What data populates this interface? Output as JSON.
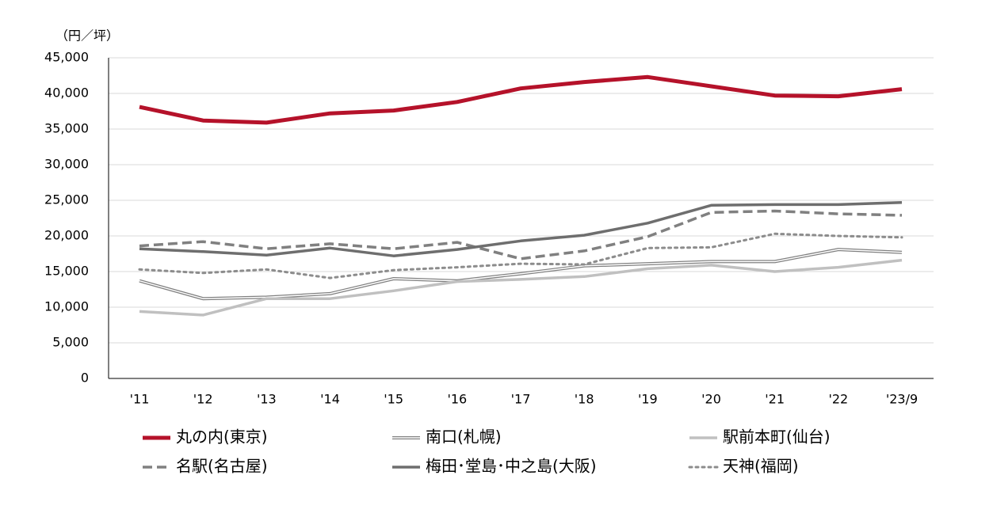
{
  "chart_data": {
    "type": "line",
    "y_axis_label": "（円／坪）",
    "categories": [
      "'11",
      "'12",
      "'13",
      "'14",
      "'15",
      "'16",
      "'17",
      "'18",
      "'19",
      "'20",
      "'21",
      "'22",
      "'23/9"
    ],
    "ylim": [
      0,
      45000
    ],
    "yticks": [
      0,
      {
        "value": 5000,
        "label": "5,000"
      },
      {
        "value": 10000,
        "label": "10,000"
      },
      {
        "value": 15000,
        "label": "15,000"
      },
      {
        "value": 20000,
        "label": "20,000"
      },
      {
        "value": 25000,
        "label": "25,000"
      },
      {
        "value": 30000,
        "label": "30,000"
      },
      {
        "value": 35000,
        "label": "35,000"
      },
      {
        "value": 40000,
        "label": "40,000"
      },
      {
        "value": 45000,
        "label": "45,000"
      }
    ],
    "grid": true,
    "legend": "bottom",
    "series": [
      {
        "name": "丸の内(東京)",
        "color": "#b5122a",
        "style": "solid",
        "width": 5,
        "values": [
          38100,
          36200,
          35900,
          37200,
          37600,
          38800,
          40700,
          41600,
          42300,
          41000,
          39700,
          39600,
          40600
        ]
      },
      {
        "name": "南口(札幌)",
        "color": "#808080",
        "style": "double",
        "width": 4,
        "values": [
          13700,
          11200,
          11400,
          11900,
          14000,
          13700,
          14700,
          15800,
          16100,
          16400,
          16400,
          18100,
          17700
        ]
      },
      {
        "name": "駅前本町(仙台)",
        "color": "#c0c0c0",
        "style": "solid",
        "width": 3.5,
        "values": [
          9400,
          8900,
          11200,
          11200,
          12300,
          13600,
          13900,
          14300,
          15400,
          15900,
          15000,
          15600,
          16600
        ]
      },
      {
        "name": "名駅(名古屋)",
        "color": "#808080",
        "style": "dashed",
        "width": 3.5,
        "values": [
          18600,
          19200,
          18200,
          18900,
          18200,
          19100,
          16800,
          17900,
          19900,
          23300,
          23500,
          23100,
          22900
        ]
      },
      {
        "name": "梅田･堂島･中之島(大阪)",
        "color": "#6e6e6e",
        "style": "solid",
        "width": 3.5,
        "values": [
          18200,
          17800,
          17300,
          18300,
          17200,
          18100,
          19300,
          20100,
          21800,
          24300,
          24400,
          24400,
          24700
        ]
      },
      {
        "name": "天神(福岡)",
        "color": "#8c8c8c",
        "style": "dotted",
        "width": 3,
        "values": [
          15300,
          14800,
          15300,
          14100,
          15200,
          15600,
          16100,
          16000,
          18300,
          18400,
          20300,
          20000,
          19800
        ]
      }
    ]
  }
}
